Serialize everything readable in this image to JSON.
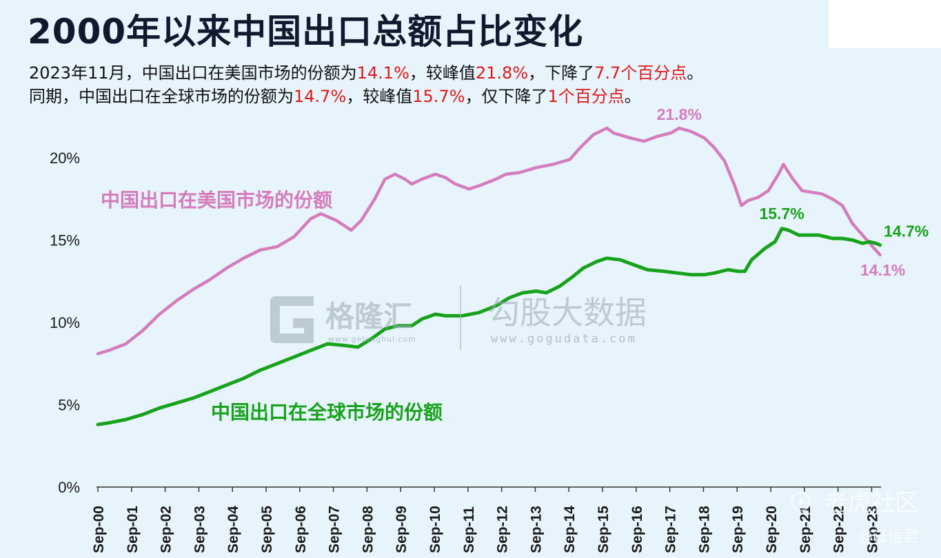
{
  "title": "2000年以来中国出口总额占比变化",
  "subtitle_line1": {
    "p1": "2023年11月，中国出口在美国市场的份额为",
    "v1": "14.1%",
    "p2": "，较峰值",
    "v2": "21.8%",
    "p3": "，下降了",
    "v3": "7.7个百分点",
    "p4": "。"
  },
  "subtitle_line2": {
    "p1": "同期，中国出口在全球市场的份额为",
    "v1": "14.7%",
    "p2": "，较峰值",
    "v2": "15.7%",
    "p3": "，仅下降了",
    "v3": "1个百分点",
    "p4": "。"
  },
  "watermark": {
    "brand1": "格隆汇",
    "brand1_url": "www.gelonghui.com",
    "brand2": "勾股大数据",
    "brand2_url": "www.gogudata.com",
    "community": "老虎社区",
    "user": "@证悟君"
  },
  "colors": {
    "us_share": "#d47cbc",
    "global_share": "#18a21c",
    "highlight": "#e01818"
  },
  "chart_data": {
    "type": "line",
    "title": "2000年以来中国出口总额占比变化",
    "xlabel": "",
    "ylabel": "",
    "ylim": [
      0,
      23
    ],
    "grid": false,
    "y_ticks": [
      "0%",
      "5%",
      "10%",
      "15%",
      "20%"
    ],
    "x_ticks": [
      "Sep-00",
      "Sep-01",
      "Sep-02",
      "Sep-03",
      "Sep-04",
      "Sep-05",
      "Sep-06",
      "Sep-07",
      "Sep-08",
      "Sep-09",
      "Sep-10",
      "Sep-11",
      "Sep-12",
      "Sep-13",
      "Sep-14",
      "Sep-15",
      "Sep-16",
      "Sep-17",
      "Sep-18",
      "Sep-19",
      "Sep-20",
      "Sep-21",
      "Sep-22",
      "Sep-23"
    ],
    "series": [
      {
        "name": "中国出口在美国市场的份额",
        "color": "#d47cbc",
        "points": [
          [
            2000.67,
            8.1
          ],
          [
            2001.0,
            8.3
          ],
          [
            2001.5,
            8.7
          ],
          [
            2002.0,
            9.5
          ],
          [
            2002.5,
            10.5
          ],
          [
            2003.0,
            11.3
          ],
          [
            2003.5,
            12.0
          ],
          [
            2004.0,
            12.6
          ],
          [
            2004.5,
            13.3
          ],
          [
            2005.0,
            13.9
          ],
          [
            2005.5,
            14.4
          ],
          [
            2006.0,
            14.6
          ],
          [
            2006.5,
            15.2
          ],
          [
            2007.0,
            16.3
          ],
          [
            2007.3,
            16.6
          ],
          [
            2007.75,
            16.2
          ],
          [
            2008.2,
            15.6
          ],
          [
            2008.5,
            16.2
          ],
          [
            2008.9,
            17.5
          ],
          [
            2009.2,
            18.7
          ],
          [
            2009.5,
            19.0
          ],
          [
            2009.8,
            18.7
          ],
          [
            2010.0,
            18.4
          ],
          [
            2010.3,
            18.7
          ],
          [
            2010.7,
            19.0
          ],
          [
            2011.0,
            18.8
          ],
          [
            2011.3,
            18.4
          ],
          [
            2011.7,
            18.1
          ],
          [
            2012.0,
            18.3
          ],
          [
            2012.5,
            18.7
          ],
          [
            2012.8,
            19.0
          ],
          [
            2013.2,
            19.1
          ],
          [
            2013.7,
            19.4
          ],
          [
            2014.2,
            19.6
          ],
          [
            2014.7,
            19.9
          ],
          [
            2015.0,
            20.6
          ],
          [
            2015.4,
            21.4
          ],
          [
            2015.8,
            21.8
          ],
          [
            2016.0,
            21.5
          ],
          [
            2016.5,
            21.2
          ],
          [
            2016.9,
            21.0
          ],
          [
            2017.3,
            21.3
          ],
          [
            2017.7,
            21.5
          ],
          [
            2017.95,
            21.8
          ],
          [
            2018.3,
            21.6
          ],
          [
            2018.7,
            21.2
          ],
          [
            2019.0,
            20.6
          ],
          [
            2019.3,
            19.8
          ],
          [
            2019.6,
            18.3
          ],
          [
            2019.8,
            17.1
          ],
          [
            2020.0,
            17.4
          ],
          [
            2020.3,
            17.6
          ],
          [
            2020.6,
            18.0
          ],
          [
            2020.9,
            19.0
          ],
          [
            2021.05,
            19.6
          ],
          [
            2021.3,
            18.8
          ],
          [
            2021.6,
            18.0
          ],
          [
            2021.9,
            17.9
          ],
          [
            2022.2,
            17.8
          ],
          [
            2022.5,
            17.5
          ],
          [
            2022.8,
            17.1
          ],
          [
            2023.1,
            16.0
          ],
          [
            2023.4,
            15.3
          ],
          [
            2023.7,
            14.6
          ],
          [
            2023.92,
            14.1
          ]
        ]
      },
      {
        "name": "中国出口在全球市场的份额",
        "color": "#18a21c",
        "points": [
          [
            2000.67,
            3.8
          ],
          [
            2001.0,
            3.9
          ],
          [
            2001.5,
            4.1
          ],
          [
            2002.0,
            4.4
          ],
          [
            2002.5,
            4.8
          ],
          [
            2003.0,
            5.1
          ],
          [
            2003.5,
            5.4
          ],
          [
            2004.0,
            5.8
          ],
          [
            2004.5,
            6.2
          ],
          [
            2005.0,
            6.6
          ],
          [
            2005.5,
            7.1
          ],
          [
            2006.0,
            7.5
          ],
          [
            2006.5,
            7.9
          ],
          [
            2007.0,
            8.3
          ],
          [
            2007.5,
            8.7
          ],
          [
            2008.0,
            8.6
          ],
          [
            2008.4,
            8.5
          ],
          [
            2008.8,
            9.0
          ],
          [
            2009.2,
            9.6
          ],
          [
            2009.6,
            9.8
          ],
          [
            2010.0,
            9.8
          ],
          [
            2010.3,
            10.2
          ],
          [
            2010.7,
            10.5
          ],
          [
            2011.0,
            10.4
          ],
          [
            2011.5,
            10.4
          ],
          [
            2012.0,
            10.6
          ],
          [
            2012.5,
            11.0
          ],
          [
            2012.9,
            11.5
          ],
          [
            2013.3,
            11.8
          ],
          [
            2013.7,
            11.9
          ],
          [
            2014.0,
            11.8
          ],
          [
            2014.4,
            12.2
          ],
          [
            2014.8,
            12.8
          ],
          [
            2015.1,
            13.3
          ],
          [
            2015.5,
            13.7
          ],
          [
            2015.8,
            13.9
          ],
          [
            2016.2,
            13.8
          ],
          [
            2016.6,
            13.5
          ],
          [
            2017.0,
            13.2
          ],
          [
            2017.5,
            13.1
          ],
          [
            2017.9,
            13.0
          ],
          [
            2018.3,
            12.9
          ],
          [
            2018.7,
            12.9
          ],
          [
            2019.0,
            13.0
          ],
          [
            2019.4,
            13.2
          ],
          [
            2019.7,
            13.1
          ],
          [
            2019.9,
            13.1
          ],
          [
            2020.1,
            13.8
          ],
          [
            2020.5,
            14.5
          ],
          [
            2020.8,
            14.9
          ],
          [
            2021.0,
            15.7
          ],
          [
            2021.2,
            15.6
          ],
          [
            2021.5,
            15.3
          ],
          [
            2021.8,
            15.3
          ],
          [
            2022.1,
            15.3
          ],
          [
            2022.5,
            15.1
          ],
          [
            2022.8,
            15.1
          ],
          [
            2023.1,
            15.0
          ],
          [
            2023.4,
            14.8
          ],
          [
            2023.6,
            14.9
          ],
          [
            2023.8,
            14.8
          ],
          [
            2023.92,
            14.7
          ]
        ]
      }
    ],
    "annotations": [
      {
        "text": "21.8%",
        "series": 0,
        "at": [
          2017.95,
          21.8
        ]
      },
      {
        "text": "14.1%",
        "series": 0,
        "at": [
          2023.92,
          14.1
        ]
      },
      {
        "text": "15.7%",
        "series": 1,
        "at": [
          2021.0,
          15.7
        ]
      },
      {
        "text": "14.7%",
        "series": 1,
        "at": [
          2023.92,
          14.7
        ]
      }
    ],
    "series_labels": [
      {
        "text": "中国出口在美国市场的份额",
        "series": 0
      },
      {
        "text": "中国出口在全球市场的份额",
        "series": 1
      }
    ]
  }
}
